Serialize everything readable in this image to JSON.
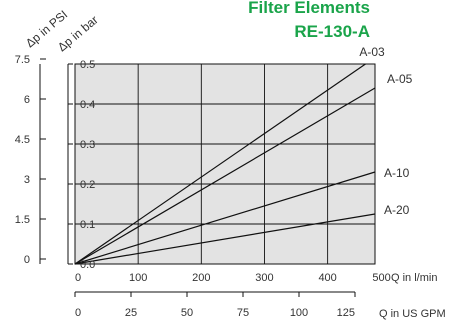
{
  "colors": {
    "title": "#1aa44a",
    "plot_bg": "#e3e3e3",
    "grid": "#111111",
    "line": "#111111",
    "text": "#333333"
  },
  "chart_data": {
    "type": "line",
    "title": "Filter Elements",
    "subtitle": "RE-130-A",
    "ylabel_psi": "Δp in PSI",
    "ylabel_bar": "Δp in bar",
    "xlabel_lmin": "Q in l/min",
    "xlabel_gpm": "Q in US GPM",
    "x_ticks_lmin": [
      0,
      100,
      200,
      300,
      400,
      500
    ],
    "x_ticks_gpm": [
      "0",
      "25",
      "50",
      "75",
      "100",
      "125"
    ],
    "y_ticks_bar": [
      "0.0",
      "0.1",
      "0.2",
      "0.3",
      "0.4",
      "0.5"
    ],
    "y_ticks_psi": [
      "0",
      "1.5",
      "3",
      "4.5",
      "6",
      "7.5"
    ],
    "xlim": [
      0,
      475
    ],
    "ylim": [
      0,
      0.5
    ],
    "grid": true,
    "series": [
      {
        "name": "A-03",
        "x": [
          0,
          460
        ],
        "y": [
          0,
          0.5
        ]
      },
      {
        "name": "A-05",
        "x": [
          0,
          475
        ],
        "y": [
          0,
          0.44
        ]
      },
      {
        "name": "A-10",
        "x": [
          0,
          475
        ],
        "y": [
          0,
          0.23
        ]
      },
      {
        "name": "A-20",
        "x": [
          0,
          475
        ],
        "y": [
          0,
          0.125
        ]
      }
    ]
  }
}
